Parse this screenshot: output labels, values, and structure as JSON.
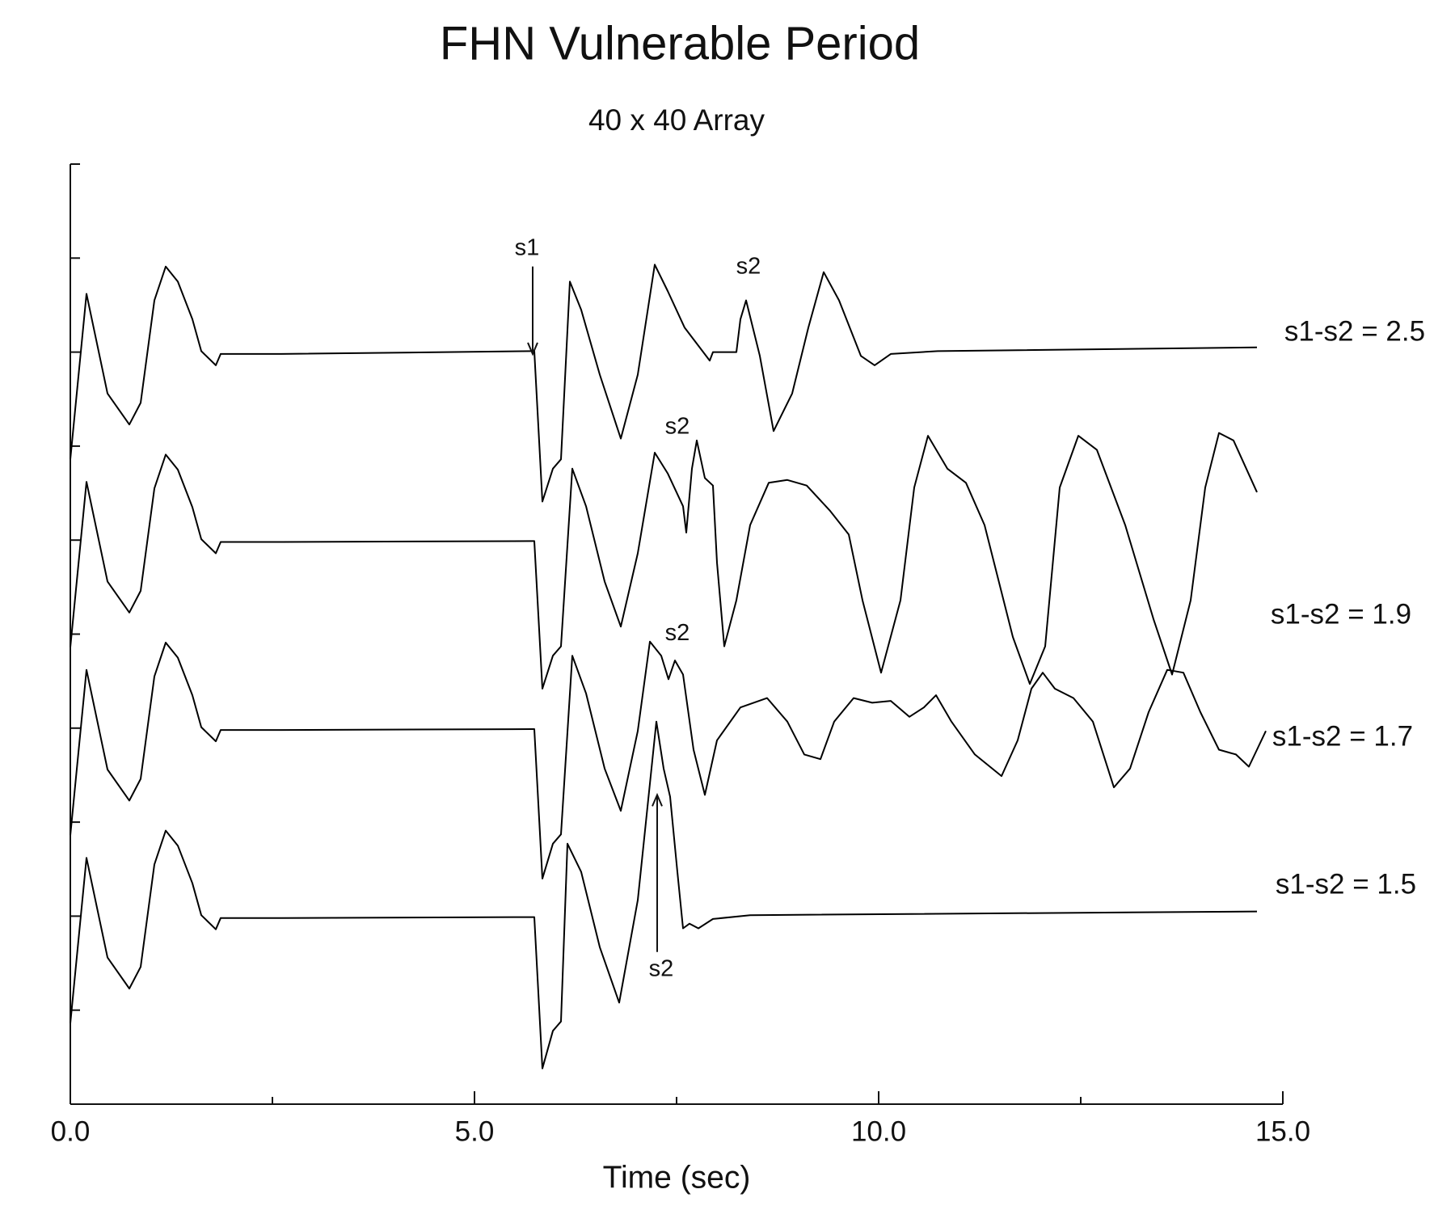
{
  "chart_data": {
    "type": "line",
    "title": "FHN Vulnerable Period",
    "subtitle": "40 x 40 Array",
    "xlabel": "Time (sec)",
    "xlim": [
      0,
      15
    ],
    "xticks": [
      {
        "value": 0,
        "label": "0.0"
      },
      {
        "value": 5,
        "label": "5.0"
      },
      {
        "value": 10,
        "label": "10.0"
      },
      {
        "value": 15,
        "label": "15.0"
      }
    ],
    "xminorticks": [
      2.5,
      7.5,
      12.5
    ],
    "ylim": [
      0,
      10
    ],
    "yticks": [
      0,
      1,
      2,
      3,
      4,
      5,
      6,
      7,
      8,
      9,
      10
    ],
    "grid": false,
    "series": [
      {
        "name": "s1-s2 = 2.5",
        "color": "#000000",
        "x": [
          0,
          0.2,
          0.46,
          0.73,
          0.87,
          1.04,
          1.18,
          1.33,
          1.51,
          1.62,
          1.8,
          1.86,
          2.61,
          5.71,
          5.74,
          5.84,
          5.97,
          6.07,
          6.18,
          6.32,
          6.55,
          6.81,
          7.02,
          7.23,
          7.39,
          7.6,
          7.91,
          7.95,
          8.24,
          8.29,
          8.36,
          8.53,
          8.7,
          8.93,
          9.13,
          9.32,
          9.51,
          9.78,
          9.95,
          10.15,
          10.73,
          14.68
        ],
        "values": [
          6.86,
          8.62,
          7.56,
          7.23,
          7.46,
          8.55,
          8.91,
          8.75,
          8.35,
          8.01,
          7.86,
          7.98,
          7.98,
          8.01,
          8.01,
          6.41,
          6.76,
          6.86,
          8.75,
          8.45,
          7.76,
          7.08,
          7.76,
          8.93,
          8.65,
          8.26,
          7.91,
          8.0,
          8.0,
          8.35,
          8.55,
          7.96,
          7.16,
          7.56,
          8.26,
          8.85,
          8.55,
          7.96,
          7.86,
          7.98,
          8.01,
          8.05
        ]
      },
      {
        "name": "s1-s2 = 1.9",
        "color": "#000000",
        "x": [
          0,
          0.2,
          0.46,
          0.73,
          0.87,
          1.04,
          1.18,
          1.33,
          1.51,
          1.62,
          1.8,
          1.86,
          2.61,
          5.71,
          5.74,
          5.84,
          5.97,
          6.07,
          6.21,
          6.38,
          6.61,
          6.81,
          7.02,
          7.23,
          7.39,
          7.58,
          7.62,
          7.69,
          7.75,
          7.85,
          7.95,
          8.0,
          8.09,
          8.24,
          8.41,
          8.64,
          8.87,
          9.11,
          9.4,
          9.63,
          9.8,
          10.03,
          10.27,
          10.44,
          10.61,
          10.85,
          11.08,
          11.31,
          11.66,
          11.87,
          12.06,
          12.24,
          12.47,
          12.7,
          13.05,
          13.4,
          13.63,
          13.86,
          14.04,
          14.21,
          14.39,
          14.68
        ],
        "values": [
          4.86,
          6.62,
          5.56,
          5.23,
          5.46,
          6.55,
          6.91,
          6.75,
          6.35,
          6.01,
          5.86,
          5.98,
          5.98,
          5.99,
          5.99,
          4.42,
          4.77,
          4.87,
          6.76,
          6.36,
          5.56,
          5.08,
          5.86,
          6.93,
          6.71,
          6.36,
          6.08,
          6.76,
          7.06,
          6.66,
          6.58,
          5.76,
          4.87,
          5.36,
          6.16,
          6.61,
          6.64,
          6.58,
          6.31,
          6.06,
          5.36,
          4.59,
          5.36,
          6.56,
          7.11,
          6.76,
          6.61,
          6.16,
          4.97,
          4.47,
          4.87,
          6.56,
          7.11,
          6.96,
          6.16,
          5.16,
          4.57,
          5.36,
          6.56,
          7.14,
          7.06,
          6.51
        ]
      },
      {
        "name": "s1-s2 = 1.7",
        "color": "#000000",
        "x": [
          0,
          0.2,
          0.46,
          0.73,
          0.87,
          1.04,
          1.18,
          1.33,
          1.51,
          1.62,
          1.8,
          1.86,
          2.61,
          5.71,
          5.74,
          5.84,
          5.97,
          6.07,
          6.21,
          6.38,
          6.61,
          6.81,
          7.02,
          7.17,
          7.31,
          7.4,
          7.48,
          7.58,
          7.71,
          7.85,
          8.0,
          8.29,
          8.62,
          8.87,
          9.08,
          9.28,
          9.45,
          9.69,
          9.92,
          10.15,
          10.38,
          10.56,
          10.71,
          10.9,
          11.19,
          11.52,
          11.72,
          11.89,
          12.03,
          12.18,
          12.41,
          12.65,
          12.91,
          13.11,
          13.34,
          13.57,
          13.77,
          13.98,
          14.21,
          14.42,
          14.58,
          14.68,
          14.79
        ],
        "values": [
          2.86,
          4.62,
          3.56,
          3.23,
          3.46,
          4.55,
          4.91,
          4.75,
          4.35,
          4.01,
          3.86,
          3.98,
          3.98,
          3.99,
          3.99,
          2.4,
          2.77,
          2.87,
          4.77,
          4.37,
          3.57,
          3.12,
          3.97,
          4.92,
          4.77,
          4.52,
          4.72,
          4.57,
          3.77,
          3.29,
          3.87,
          4.22,
          4.32,
          4.07,
          3.72,
          3.67,
          4.07,
          4.32,
          4.27,
          4.29,
          4.12,
          4.22,
          4.35,
          4.07,
          3.72,
          3.49,
          3.87,
          4.42,
          4.59,
          4.42,
          4.32,
          4.07,
          3.37,
          3.57,
          4.17,
          4.62,
          4.59,
          4.17,
          3.77,
          3.72,
          3.59,
          3.77,
          3.97
        ]
      },
      {
        "name": "s1-s2 = 1.5",
        "color": "#000000",
        "x": [
          0,
          0.2,
          0.46,
          0.73,
          0.87,
          1.04,
          1.18,
          1.33,
          1.51,
          1.62,
          1.8,
          1.86,
          2.61,
          5.71,
          5.74,
          5.84,
          5.97,
          6.07,
          6.15,
          6.32,
          6.55,
          6.79,
          7.02,
          7.25,
          7.34,
          7.42,
          7.51,
          7.58,
          7.66,
          7.77,
          7.95,
          8.41,
          14.68
        ],
        "values": [
          0.86,
          2.62,
          1.56,
          1.23,
          1.46,
          2.55,
          2.91,
          2.75,
          2.35,
          2.01,
          1.86,
          1.98,
          1.98,
          1.99,
          1.99,
          0.38,
          0.78,
          0.88,
          2.77,
          2.47,
          1.67,
          1.08,
          2.17,
          4.07,
          3.57,
          3.27,
          2.47,
          1.87,
          1.92,
          1.87,
          1.97,
          2.01,
          2.05
        ]
      }
    ],
    "annotations": [
      {
        "text": "s1",
        "x": 5.65,
        "y": 9.1,
        "arrow": [
          5.72,
          7.98
        ]
      },
      {
        "text": "s2",
        "x": 8.39,
        "y": 8.9
      },
      {
        "text": "s2",
        "x": 7.51,
        "y": 7.2
      },
      {
        "text": "s2",
        "x": 7.51,
        "y": 5.0
      },
      {
        "text": "s2",
        "x": 7.31,
        "y": 1.43,
        "arrow": [
          7.26,
          3.29
        ]
      }
    ]
  }
}
